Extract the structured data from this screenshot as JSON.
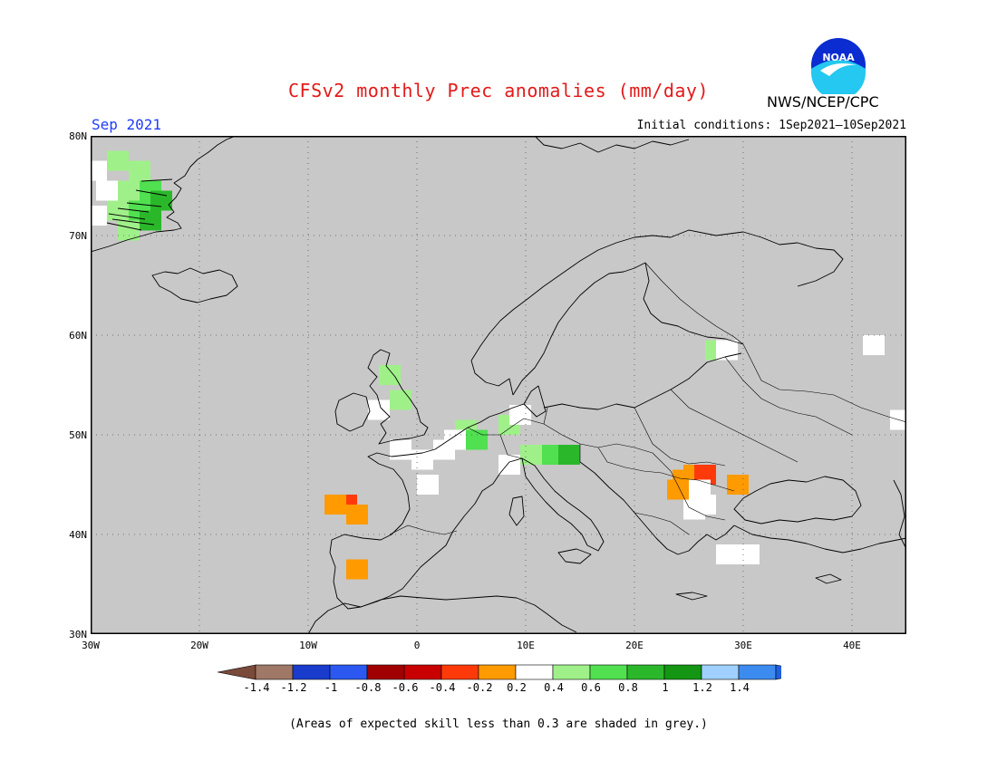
{
  "header": {
    "title": "CFSv2 monthly Prec anomalies (mm/day)",
    "agency": "NWS/NCEP/CPC",
    "logo_text": "NOAA",
    "month": "Sep 2021",
    "initial_conditions": "Initial conditions: 1Sep2021–10Sep2021"
  },
  "map": {
    "lon_range": [
      -30,
      45
    ],
    "lat_range": [
      30,
      80
    ],
    "lat_ticks": [
      "80N",
      "70N",
      "60N",
      "50N",
      "40N",
      "30N"
    ],
    "lon_ticks": [
      "30W",
      "20W",
      "10W",
      "0",
      "10E",
      "20E",
      "30E",
      "40E"
    ],
    "background_color": "#c8c8c8",
    "gridlines": true,
    "anomaly_cells": [
      {
        "lon": -29.5,
        "lat": 76.5,
        "value": 0.1
      },
      {
        "lon": -27.5,
        "lat": 77.5,
        "value": 0.3
      },
      {
        "lon": -25.5,
        "lat": 76.5,
        "value": 0.3
      },
      {
        "lon": -28.5,
        "lat": 74.5,
        "value": 0.1
      },
      {
        "lon": -26.5,
        "lat": 74.5,
        "value": 0.3
      },
      {
        "lon": -24.5,
        "lat": 74.5,
        "value": 0.5
      },
      {
        "lon": -23.5,
        "lat": 73.5,
        "value": 0.7
      },
      {
        "lon": -25.5,
        "lat": 72.5,
        "value": 0.5
      },
      {
        "lon": -27.5,
        "lat": 72.5,
        "value": 0.3
      },
      {
        "lon": -24.5,
        "lat": 71.5,
        "value": 0.7
      },
      {
        "lon": -26.5,
        "lat": 70.5,
        "value": 0.3
      },
      {
        "lon": -29.5,
        "lat": 72.0,
        "value": 0.1
      },
      {
        "lon": -2.5,
        "lat": 56.0,
        "value": 0.3
      },
      {
        "lon": -1.5,
        "lat": 53.5,
        "value": 0.3
      },
      {
        "lon": -3.5,
        "lat": 52.5,
        "value": 0.1
      },
      {
        "lon": 4.5,
        "lat": 50.5,
        "value": 0.3
      },
      {
        "lon": 5.5,
        "lat": 49.5,
        "value": 0.5
      },
      {
        "lon": 8.5,
        "lat": 51.0,
        "value": 0.3
      },
      {
        "lon": 9.5,
        "lat": 52.0,
        "value": 0.1
      },
      {
        "lon": 10.5,
        "lat": 48.0,
        "value": 0.3
      },
      {
        "lon": 12.5,
        "lat": 48.0,
        "value": 0.5
      },
      {
        "lon": 14.0,
        "lat": 48.0,
        "value": 0.7
      },
      {
        "lon": 8.5,
        "lat": 47.0,
        "value": 0.1
      },
      {
        "lon": -1.5,
        "lat": 48.5,
        "value": 0.1
      },
      {
        "lon": 0.5,
        "lat": 47.5,
        "value": 0.1
      },
      {
        "lon": 2.5,
        "lat": 48.5,
        "value": 0.1
      },
      {
        "lon": 3.5,
        "lat": 49.5,
        "value": 0.1
      },
      {
        "lon": 1.0,
        "lat": 45.0,
        "value": 0.1
      },
      {
        "lon": -6.5,
        "lat": 43.0,
        "value": -0.5
      },
      {
        "lon": -5.5,
        "lat": 42.0,
        "value": -0.3
      },
      {
        "lon": -7.5,
        "lat": 43.0,
        "value": -0.3
      },
      {
        "lon": -5.5,
        "lat": 36.5,
        "value": -0.3
      },
      {
        "lon": 24.5,
        "lat": 45.5,
        "value": -0.3
      },
      {
        "lon": 25.5,
        "lat": 46.0,
        "value": -0.3
      },
      {
        "lon": 26.5,
        "lat": 46.0,
        "value": -0.5
      },
      {
        "lon": 24.0,
        "lat": 44.5,
        "value": -0.3
      },
      {
        "lon": 26.0,
        "lat": 44.5,
        "value": -0.1
      },
      {
        "lon": 29.5,
        "lat": 45.0,
        "value": -0.3
      },
      {
        "lon": 26.5,
        "lat": 43.0,
        "value": -0.1
      },
      {
        "lon": 25.5,
        "lat": 42.5,
        "value": 0.1
      },
      {
        "lon": 27.5,
        "lat": 58.5,
        "value": 0.3
      },
      {
        "lon": 28.5,
        "lat": 58.5,
        "value": 0.1
      },
      {
        "lon": 29.5,
        "lat": 38.0,
        "value": 0.3
      },
      {
        "lon": 28.5,
        "lat": 38.0,
        "value": 0.1
      },
      {
        "lon": 30.5,
        "lat": 38.0,
        "value": 0.1
      },
      {
        "lon": 42.0,
        "lat": 59.0,
        "value": 0.1
      },
      {
        "lon": 44.5,
        "lat": 51.5,
        "value": 0.1
      }
    ]
  },
  "colorbar": {
    "colors": [
      "#7a4a3a",
      "#a07868",
      "#1a3ccc",
      "#2a58f0",
      "#a00000",
      "#c80000",
      "#ff3a0a",
      "#ff9a00",
      "#ffffff",
      "#a0f08a",
      "#50e050",
      "#2ab82a",
      "#149614",
      "#a0d0ff",
      "#3c8cf0",
      "#2060e0"
    ],
    "labels": [
      "-1.4",
      "-1.2",
      "-1",
      "-0.8",
      "-0.6",
      "-0.4",
      "-0.2",
      "0.2",
      "0.4",
      "0.6",
      "0.8",
      "1",
      "1.2",
      "1.4"
    ]
  },
  "footer": {
    "note": "(Areas of expected skill less than 0.3 are shaded in grey.)"
  }
}
